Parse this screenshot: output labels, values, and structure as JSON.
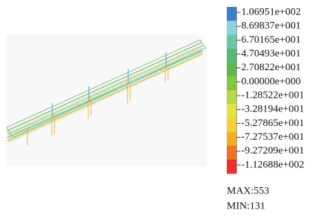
{
  "legend": {
    "items": [
      {
        "label": "1.06951e+002",
        "color": "#3c7fc6"
      },
      {
        "label": "8.69837e+001",
        "color": "#8fd2dc"
      },
      {
        "label": "6.70165e+001",
        "color": "#6fc6a6"
      },
      {
        "label": "4.70493e+001",
        "color": "#58b87c"
      },
      {
        "label": "2.70822e+001",
        "color": "#62b64e"
      },
      {
        "label": "0.00000e+000",
        "color": "#86c63e"
      },
      {
        "label": "-1.28522e+001",
        "color": "#b6d846"
      },
      {
        "label": "-3.28194e+001",
        "color": "#dfe444"
      },
      {
        "label": "-5.27865e+001",
        "color": "#f4d236"
      },
      {
        "label": "-7.27537e+001",
        "color": "#f5ae22"
      },
      {
        "label": "-9.27209e+001",
        "color": "#ef7226"
      },
      {
        "label": "-1.12688e+002",
        "color": "#e63232"
      }
    ]
  },
  "stats": {
    "max": "MAX:553",
    "min": "MIN:131"
  }
}
